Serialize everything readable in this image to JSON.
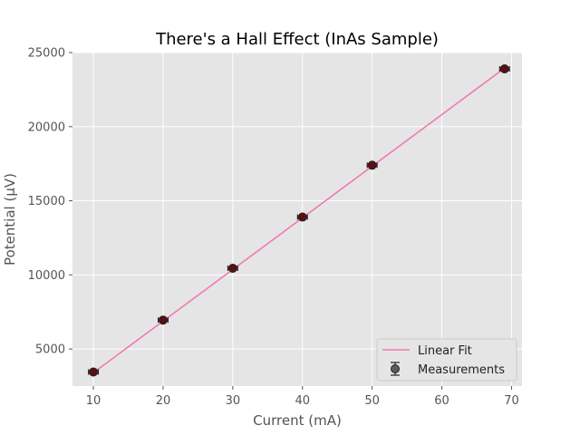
{
  "chart_data": {
    "type": "scatter",
    "title": "There's a Hall Effect (InAs Sample)",
    "xlabel": "Current (mA)",
    "ylabel": "Potential (μV)",
    "xlim": [
      7,
      71.5
    ],
    "ylim": [
      2500,
      25000
    ],
    "xticks": [
      10,
      20,
      30,
      40,
      50,
      60,
      70
    ],
    "yticks": [
      5000,
      10000,
      15000,
      20000,
      25000
    ],
    "grid": true,
    "legend_position": "bottom-right",
    "series": [
      {
        "name": "Linear Fit",
        "kind": "line",
        "color": "#f07ab4",
        "x": [
          10,
          69
        ],
        "y": [
          3400,
          23950
        ]
      },
      {
        "name": "Measurements",
        "kind": "errorbar",
        "marker_color": "#5a0f14",
        "x": [
          10,
          20,
          30,
          40,
          50,
          69
        ],
        "y": [
          3450,
          6950,
          10450,
          13900,
          17400,
          23900
        ],
        "x_err": [
          0.7,
          0.7,
          0.7,
          0.7,
          0.7,
          0.7
        ]
      }
    ]
  },
  "colors": {
    "plot_background": "#e5e5e5",
    "grid": "#ffffff"
  }
}
